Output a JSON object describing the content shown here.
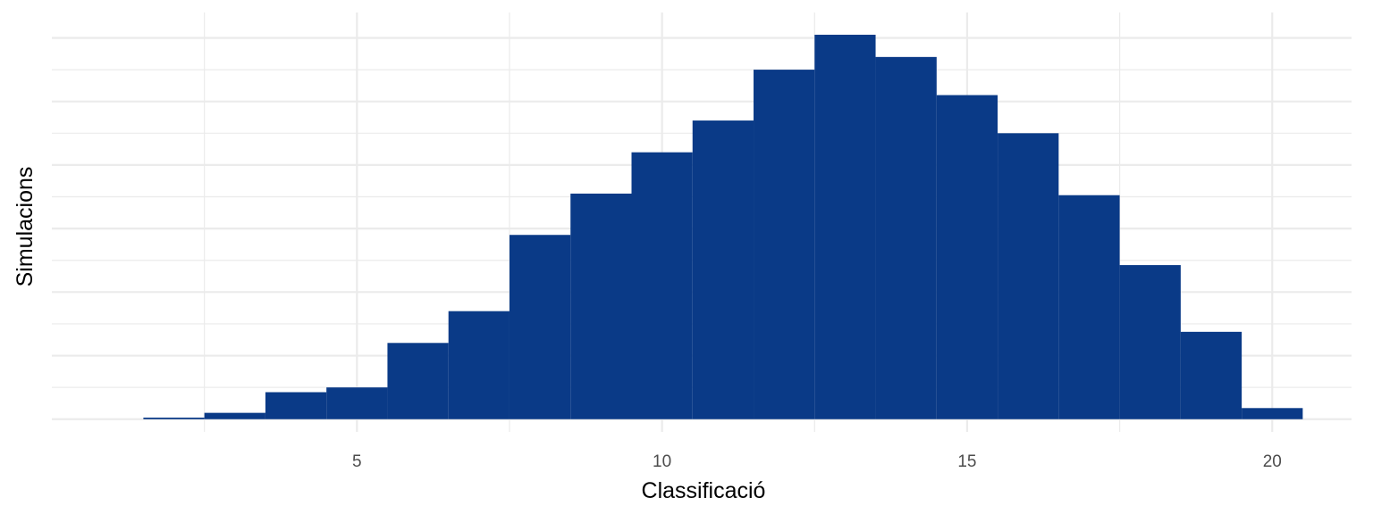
{
  "chart_data": {
    "type": "bar",
    "title": "",
    "xlabel": "Classificació",
    "ylabel": "Simulacions",
    "x": [
      2,
      3,
      4,
      5,
      6,
      7,
      8,
      9,
      10,
      11,
      12,
      13,
      14,
      15,
      16,
      17,
      18,
      19,
      20
    ],
    "values": [
      0.5,
      2.0,
      8.5,
      10.0,
      24.0,
      34.0,
      58.0,
      71.0,
      84.0,
      94.0,
      110.0,
      121.0,
      114.0,
      102.0,
      90.0,
      70.5,
      48.5,
      27.5,
      3.5
    ],
    "xlim": [
      0,
      21.3
    ],
    "ylim": [
      -4,
      128
    ],
    "xticks": [
      5,
      10,
      15,
      20
    ],
    "xtick_labels": [
      "5",
      "10",
      "15",
      "20"
    ],
    "y_tick_labels_shown": false,
    "grid": true,
    "bar_color": "#0a3a87",
    "grid_color": "#ebebeb"
  }
}
